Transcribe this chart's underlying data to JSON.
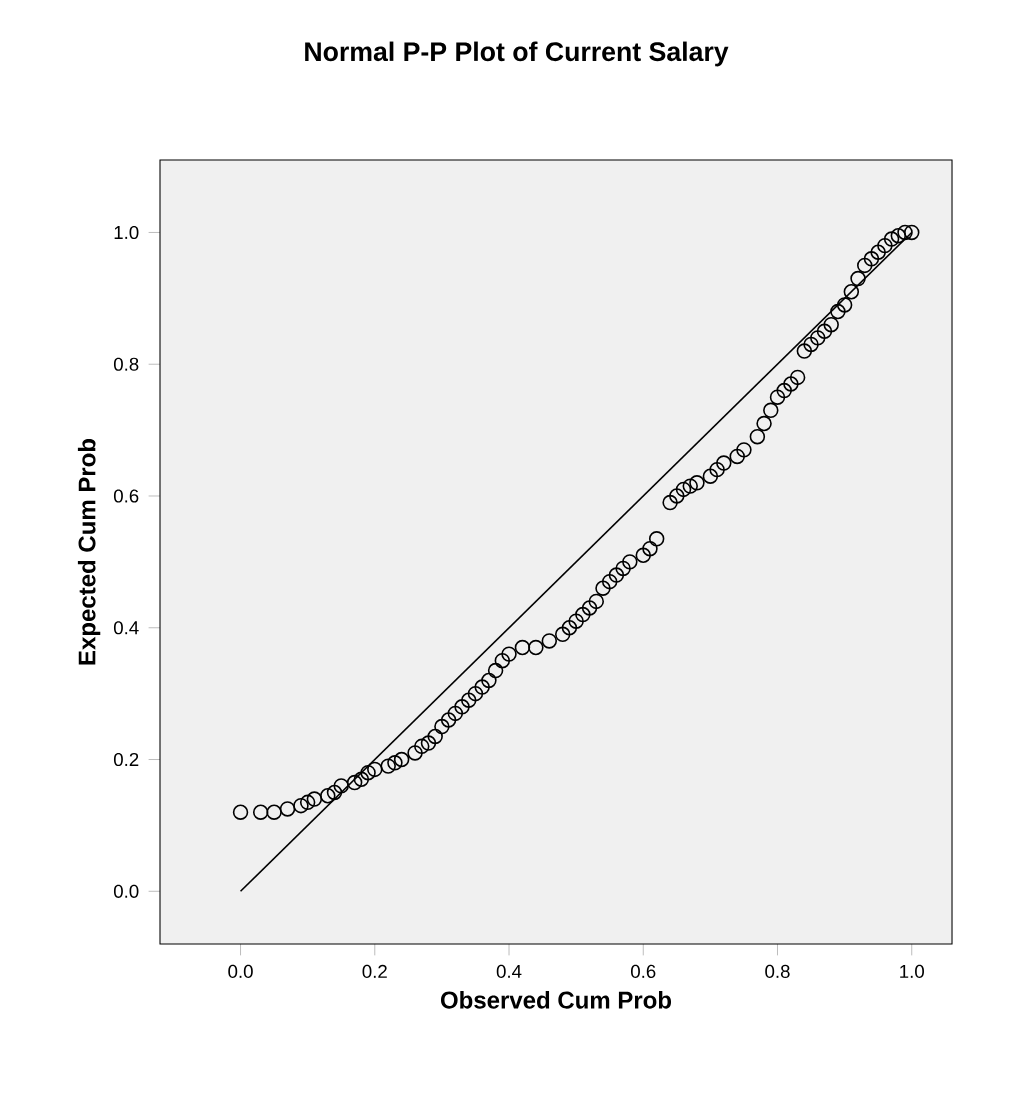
{
  "chart_data": {
    "type": "scatter",
    "title": "Normal P-P Plot of Current Salary",
    "xlabel": "Observed Cum Prob",
    "ylabel": "Expected Cum Prob",
    "xlim": [
      -0.12,
      1.06
    ],
    "ylim": [
      -0.08,
      1.11
    ],
    "xticks": [
      {
        "value": 0,
        "label": "0.0"
      },
      {
        "value": 0.2,
        "label": "0.2"
      },
      {
        "value": 0.4,
        "label": "0.4"
      },
      {
        "value": 0.6,
        "label": "0.6"
      },
      {
        "value": 0.8,
        "label": "0.8"
      },
      {
        "value": 1,
        "label": "1.0"
      }
    ],
    "yticks": [
      {
        "value": 0,
        "label": "0.0"
      },
      {
        "value": 0.2,
        "label": "0.2"
      },
      {
        "value": 0.4,
        "label": "0.4"
      },
      {
        "value": 0.6,
        "label": "0.6"
      },
      {
        "value": 0.8,
        "label": "0.8"
      },
      {
        "value": 1,
        "label": "1.0"
      }
    ],
    "grid": false,
    "marker": "circle",
    "series": [
      {
        "color": "#000000",
        "x": [
          0.0,
          0.03,
          0.05,
          0.07,
          0.09,
          0.1,
          0.11,
          0.13,
          0.14,
          0.15,
          0.17,
          0.18,
          0.19,
          0.2,
          0.22,
          0.23,
          0.24,
          0.26,
          0.27,
          0.28,
          0.29,
          0.3,
          0.31,
          0.32,
          0.33,
          0.34,
          0.35,
          0.36,
          0.37,
          0.38,
          0.39,
          0.4,
          0.42,
          0.44,
          0.46,
          0.48,
          0.49,
          0.5,
          0.51,
          0.52,
          0.53,
          0.54,
          0.55,
          0.56,
          0.57,
          0.58,
          0.6,
          0.61,
          0.62,
          0.64,
          0.65,
          0.66,
          0.67,
          0.68,
          0.7,
          0.71,
          0.72,
          0.74,
          0.75,
          0.77,
          0.78,
          0.79,
          0.8,
          0.81,
          0.82,
          0.83,
          0.84,
          0.85,
          0.86,
          0.87,
          0.88,
          0.89,
          0.9,
          0.91,
          0.92,
          0.93,
          0.94,
          0.95,
          0.96,
          0.97,
          0.98,
          0.99,
          1.0
        ],
        "values": [
          0.12,
          0.12,
          0.12,
          0.125,
          0.13,
          0.135,
          0.14,
          0.145,
          0.15,
          0.16,
          0.165,
          0.17,
          0.18,
          0.185,
          0.19,
          0.195,
          0.2,
          0.21,
          0.22,
          0.225,
          0.235,
          0.25,
          0.26,
          0.27,
          0.28,
          0.29,
          0.3,
          0.31,
          0.32,
          0.335,
          0.35,
          0.36,
          0.37,
          0.37,
          0.38,
          0.39,
          0.4,
          0.41,
          0.42,
          0.43,
          0.44,
          0.46,
          0.47,
          0.48,
          0.49,
          0.5,
          0.51,
          0.52,
          0.535,
          0.59,
          0.6,
          0.61,
          0.615,
          0.62,
          0.63,
          0.64,
          0.65,
          0.66,
          0.67,
          0.69,
          0.71,
          0.73,
          0.75,
          0.76,
          0.77,
          0.78,
          0.82,
          0.83,
          0.84,
          0.85,
          0.86,
          0.88,
          0.89,
          0.91,
          0.93,
          0.95,
          0.96,
          0.97,
          0.98,
          0.99,
          0.995,
          1.0,
          1.0
        ]
      },
      {
        "type": "line",
        "color": "#000000",
        "marker": "none",
        "line_style": "solid",
        "x": [
          0,
          1
        ],
        "values": [
          0,
          1
        ]
      }
    ]
  }
}
